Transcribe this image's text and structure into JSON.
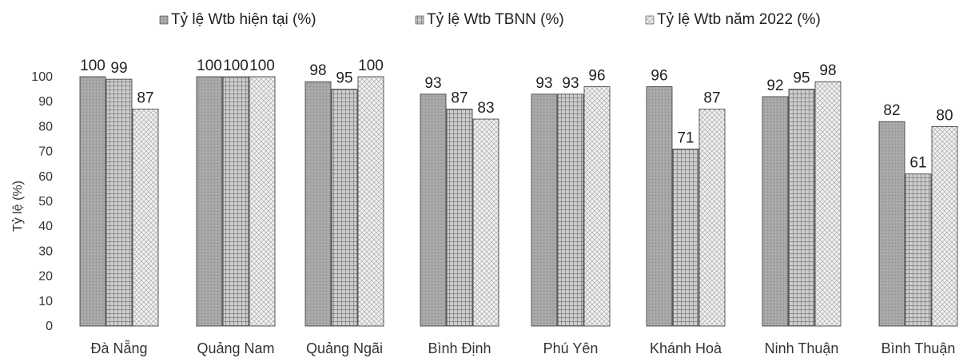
{
  "chart_data": {
    "type": "bar",
    "title": "",
    "xlabel": "",
    "ylabel": "Tỷ lệ (%)",
    "ylim": [
      0,
      100
    ],
    "yticks": [
      0,
      10,
      20,
      30,
      40,
      50,
      60,
      70,
      80,
      90,
      100
    ],
    "grid": false,
    "legend": "top",
    "categories": [
      "Đà Nẵng",
      "Quảng Nam",
      "Quảng Ngãi",
      "Bình Định",
      "Phú Yên",
      "Khánh Hoà",
      "Ninh Thuận",
      "Bình Thuận"
    ],
    "series": [
      {
        "name": "Tỷ lệ Wtb hiện tại (%)",
        "values": [
          100,
          100,
          98,
          93,
          93,
          96,
          92,
          82
        ],
        "color": "#a8a8a8"
      },
      {
        "name": "Tỷ lệ Wtb TBNN (%)",
        "values": [
          99,
          100,
          95,
          87,
          93,
          71,
          95,
          61
        ],
        "color": "#bdbdbd"
      },
      {
        "name": "Tỷ lệ Wtb năm 2022 (%)",
        "values": [
          87,
          100,
          100,
          83,
          96,
          87,
          98,
          80
        ],
        "color": "#e3e3e3"
      }
    ]
  }
}
